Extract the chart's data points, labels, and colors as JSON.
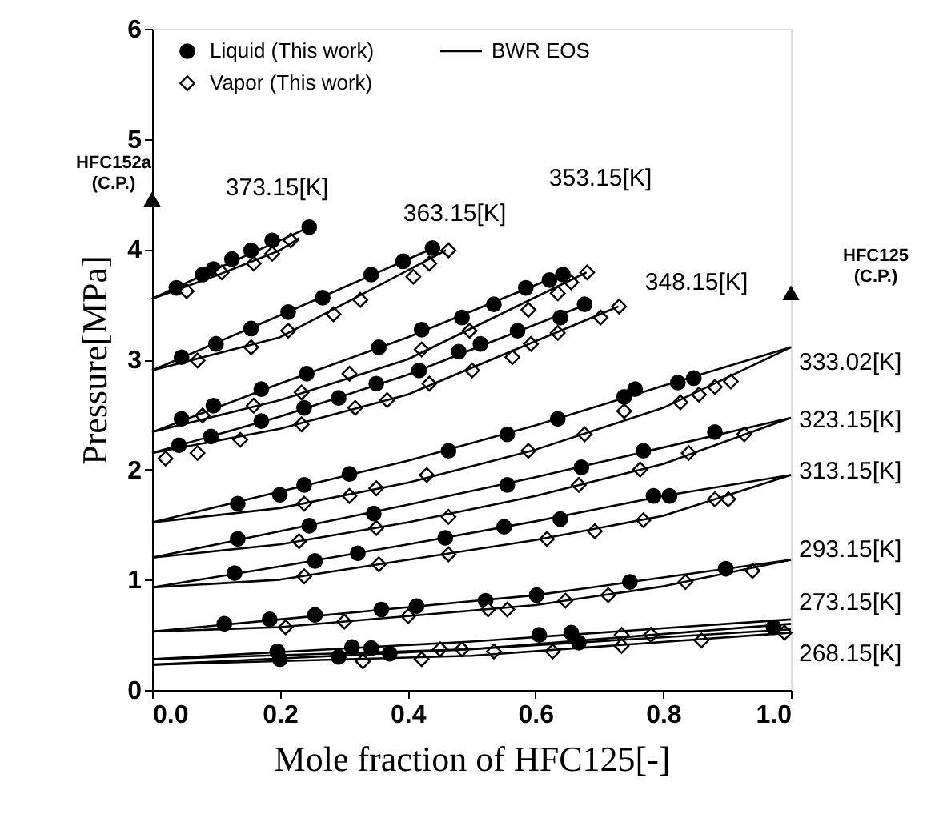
{
  "chart_data": {
    "type": "scatter",
    "xlabel": "Mole fraction of HFC125[-]",
    "ylabel": "Pressure[MPa]",
    "xlim": [
      0,
      1
    ],
    "ylim": [
      0,
      6
    ],
    "xticks": [
      {
        "value": 0,
        "label": "0.0"
      },
      0.2,
      0.4,
      0.6,
      0.8,
      {
        "value": 1,
        "label": "1.0"
      }
    ],
    "yticks": [
      0,
      1,
      2,
      3,
      4,
      5,
      6
    ],
    "grid": false,
    "legend": "top left",
    "series": [
      {
        "name": "Liquid (This work)",
        "marker": "circle",
        "color": "#000000",
        "x": [
          0.038,
          0.079,
          0.096,
          0.125,
          0.155,
          0.188,
          0.246,
          0.046,
          0.1,
          0.155,
          0.213,
          0.267,
          0.343,
          0.393,
          0.439,
          0.046,
          0.096,
          0.171,
          0.242,
          0.355,
          0.422,
          0.485,
          0.535,
          0.585,
          0.622,
          0.643,
          0.042,
          0.092,
          0.171,
          0.238,
          0.292,
          0.351,
          0.418,
          0.48,
          0.514,
          0.572,
          0.639,
          0.677,
          0.134,
          0.2,
          0.238,
          0.309,
          0.464,
          0.556,
          0.635,
          0.739,
          0.756,
          0.823,
          0.848,
          0.134,
          0.246,
          0.347,
          0.556,
          0.672,
          0.769,
          0.881,
          0.129,
          0.255,
          0.322,
          0.459,
          0.551,
          0.639,
          0.785,
          0.81,
          0.113,
          0.184,
          0.255,
          0.359,
          0.414,
          0.522,
          0.602,
          0.748,
          0.898,
          0.196,
          0.313,
          0.343,
          0.606,
          0.656,
          0.973,
          0.2,
          0.292,
          0.372,
          0.668
        ],
        "values": [
          3.65,
          3.77,
          3.82,
          3.91,
          3.99,
          4.08,
          4.2,
          3.02,
          3.14,
          3.28,
          3.43,
          3.56,
          3.77,
          3.89,
          4.01,
          2.46,
          2.58,
          2.73,
          2.87,
          3.11,
          3.27,
          3.38,
          3.5,
          3.65,
          3.72,
          3.77,
          2.22,
          2.3,
          2.44,
          2.56,
          2.65,
          2.78,
          2.9,
          3.07,
          3.14,
          3.26,
          3.38,
          3.5,
          1.69,
          1.77,
          1.86,
          1.96,
          2.17,
          2.32,
          2.46,
          2.66,
          2.73,
          2.79,
          2.83,
          1.37,
          1.49,
          1.6,
          1.86,
          2.02,
          2.17,
          2.34,
          1.06,
          1.17,
          1.24,
          1.38,
          1.48,
          1.55,
          1.76,
          1.76,
          0.6,
          0.64,
          0.68,
          0.73,
          0.76,
          0.81,
          0.86,
          0.98,
          1.1,
          0.35,
          0.39,
          0.38,
          0.5,
          0.52,
          0.57,
          0.28,
          0.3,
          0.33,
          0.43
        ]
      },
      {
        "name": "Vapor (This work)",
        "marker": "diamond",
        "color": "#000000",
        "x": [
          0.054,
          0.109,
          0.159,
          0.188,
          0.217,
          0.071,
          0.155,
          0.213,
          0.284,
          0.326,
          0.409,
          0.434,
          0.464,
          0.079,
          0.159,
          0.234,
          0.309,
          0.422,
          0.497,
          0.589,
          0.635,
          0.656,
          0.681,
          0.021,
          0.071,
          0.138,
          0.234,
          0.318,
          0.368,
          0.434,
          0.501,
          0.564,
          0.593,
          0.635,
          0.702,
          0.731,
          0.238,
          0.309,
          0.351,
          0.43,
          0.589,
          0.677,
          0.739,
          0.827,
          0.856,
          0.881,
          0.906,
          0.23,
          0.351,
          0.464,
          0.668,
          0.764,
          0.84,
          0.927,
          0.238,
          0.355,
          0.464,
          0.618,
          0.693,
          0.769,
          0.881,
          0.902,
          0.209,
          0.301,
          0.401,
          0.526,
          0.556,
          0.647,
          0.714,
          0.835,
          0.94,
          0.451,
          0.485,
          0.535,
          0.735,
          0.781,
          0.86,
          0.99,
          0.33,
          0.422,
          0.627,
          0.735
        ],
        "values": [
          3.62,
          3.79,
          3.87,
          3.96,
          4.08,
          2.99,
          3.11,
          3.26,
          3.41,
          3.54,
          3.75,
          3.87,
          3.99,
          2.49,
          2.58,
          2.7,
          2.87,
          3.09,
          3.26,
          3.45,
          3.6,
          3.7,
          3.79,
          2.1,
          2.15,
          2.27,
          2.41,
          2.56,
          2.63,
          2.78,
          2.9,
          3.02,
          3.14,
          3.24,
          3.38,
          3.48,
          1.69,
          1.76,
          1.83,
          1.95,
          2.17,
          2.32,
          2.53,
          2.61,
          2.68,
          2.75,
          2.8,
          1.35,
          1.47,
          1.57,
          1.86,
          2.0,
          2.15,
          2.32,
          1.03,
          1.14,
          1.23,
          1.37,
          1.44,
          1.54,
          1.73,
          1.73,
          0.57,
          0.62,
          0.67,
          0.73,
          0.73,
          0.81,
          0.86,
          0.98,
          1.08,
          0.37,
          0.37,
          0.35,
          0.5,
          0.5,
          0.45,
          0.52,
          0.26,
          0.28,
          0.35,
          0.4
        ]
      },
      {
        "name": "BWR EOS",
        "type": "line",
        "color": "#000000",
        "x": [
          0,
          0.1,
          0.2,
          0.25
        ],
        "values": [
          3.55,
          3.82,
          4.08,
          4.21
        ]
      },
      {
        "type": "line",
        "color": "#000000",
        "x": [
          0,
          0.1,
          0.2,
          0.23
        ],
        "values": [
          3.55,
          3.76,
          3.99,
          4.1
        ]
      },
      {
        "type": "line",
        "color": "#000000",
        "x": [
          0,
          0.2,
          0.44
        ],
        "values": [
          2.9,
          3.4,
          4.01
        ]
      },
      {
        "type": "line",
        "color": "#000000",
        "x": [
          0,
          0.2,
          0.46
        ],
        "values": [
          2.9,
          3.2,
          3.99
        ]
      },
      {
        "type": "line",
        "color": "#000000",
        "x": [
          0,
          0.2,
          0.4,
          0.64
        ],
        "values": [
          2.34,
          2.78,
          3.2,
          3.77
        ]
      },
      {
        "type": "line",
        "color": "#000000",
        "x": [
          0,
          0.2,
          0.4,
          0.68
        ],
        "values": [
          2.34,
          2.63,
          3.0,
          3.79
        ]
      },
      {
        "type": "line",
        "color": "#000000",
        "x": [
          0,
          0.2,
          0.4,
          0.68
        ],
        "values": [
          2.15,
          2.48,
          2.86,
          3.5
        ]
      },
      {
        "type": "line",
        "color": "#000000",
        "x": [
          0,
          0.2,
          0.4,
          0.73
        ],
        "values": [
          2.15,
          2.37,
          2.68,
          3.48
        ]
      },
      {
        "type": "line",
        "color": "#000000",
        "x": [
          0,
          0.2,
          0.4,
          0.6,
          0.8,
          1.0
        ],
        "values": [
          1.52,
          1.8,
          2.08,
          2.4,
          2.76,
          3.11
        ]
      },
      {
        "type": "line",
        "color": "#000000",
        "x": [
          0,
          0.2,
          0.4,
          0.6,
          0.8,
          1.0
        ],
        "values": [
          1.52,
          1.65,
          1.88,
          2.18,
          2.56,
          3.11
        ]
      },
      {
        "type": "line",
        "color": "#000000",
        "x": [
          0,
          0.2,
          0.4,
          0.6,
          0.8,
          1.0
        ],
        "values": [
          1.2,
          1.44,
          1.68,
          1.93,
          2.2,
          2.47
        ]
      },
      {
        "type": "line",
        "color": "#000000",
        "x": [
          0,
          0.2,
          0.4,
          0.6,
          0.8,
          1.0
        ],
        "values": [
          1.2,
          1.32,
          1.52,
          1.76,
          2.05,
          2.47
        ]
      },
      {
        "type": "line",
        "color": "#000000",
        "x": [
          0,
          0.2,
          0.4,
          0.6,
          0.8,
          1.0
        ],
        "values": [
          0.93,
          1.12,
          1.32,
          1.53,
          1.76,
          1.95
        ]
      },
      {
        "type": "line",
        "color": "#000000",
        "x": [
          0,
          0.2,
          0.4,
          0.6,
          0.8,
          1.0
        ],
        "values": [
          0.93,
          1.0,
          1.18,
          1.36,
          1.58,
          1.95
        ]
      },
      {
        "type": "line",
        "color": "#000000",
        "x": [
          0,
          0.2,
          0.4,
          0.6,
          0.8,
          1.0
        ],
        "values": [
          0.53,
          0.64,
          0.75,
          0.86,
          1.02,
          1.18
        ]
      },
      {
        "type": "line",
        "color": "#000000",
        "x": [
          0,
          0.2,
          0.4,
          0.6,
          0.8,
          1.0
        ],
        "values": [
          0.53,
          0.57,
          0.67,
          0.77,
          0.94,
          1.18
        ]
      },
      {
        "type": "line",
        "color": "#000000",
        "x": [
          0,
          0.5,
          1.0
        ],
        "values": [
          0.28,
          0.44,
          0.64
        ]
      },
      {
        "type": "line",
        "color": "#000000",
        "x": [
          0,
          0.5,
          1.0
        ],
        "values": [
          0.28,
          0.37,
          0.6
        ]
      },
      {
        "type": "line",
        "color": "#000000",
        "x": [
          0,
          0.5,
          1.0
        ],
        "values": [
          0.23,
          0.37,
          0.55
        ]
      },
      {
        "type": "line",
        "color": "#000000",
        "x": [
          0,
          0.5,
          1.0
        ],
        "values": [
          0.23,
          0.31,
          0.52
        ]
      },
      {
        "marker": "triangle",
        "color": "#000000",
        "x": [
          0
        ],
        "values": [
          4.45
        ]
      },
      {
        "marker": "triangle",
        "color": "#000000",
        "x": [
          1.0
        ],
        "values": [
          3.6
        ]
      }
    ],
    "annotations": [
      "373.15[K]",
      "363.15[K]",
      "353.15[K]",
      "348.15[K]",
      "333.02[K]",
      "323.15[K]",
      "313.15[K]",
      "293.15[K]",
      "273.15[K]",
      "268.15[K]",
      "HFC152a",
      "(C.P.)",
      "HFC125",
      "(C.P.)"
    ]
  }
}
